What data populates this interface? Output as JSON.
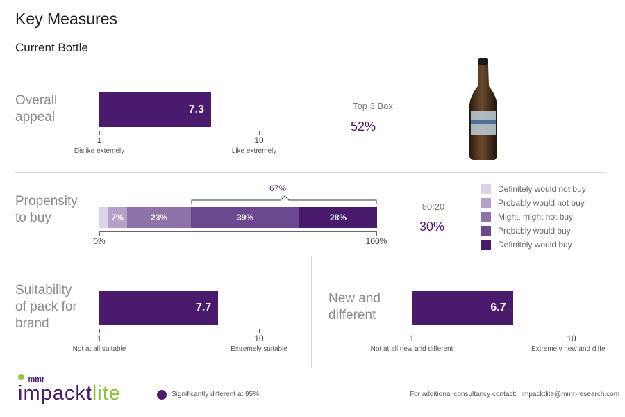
{
  "header": {
    "title": "Key Measures",
    "subtitle": "Current Bottle"
  },
  "colors": {
    "primary": "#4a1a6d",
    "grey_text": "#8a8a8a",
    "brand_green": "#8cc63f"
  },
  "overall_appeal": {
    "label": "Overall\nappeal",
    "value": 7.3,
    "value_label": "7.3",
    "scale_min_label": "1",
    "scale_max_label": "10",
    "min_desc": "Dislike extemely",
    "max_desc": "Like extremely",
    "top_box_title": "Top 3 Box",
    "top_box_value": "52%"
  },
  "propensity": {
    "label": "Propensity\nto buy",
    "segments": [
      {
        "name": "Definitely would not buy",
        "value": 3,
        "label": "",
        "color": "#ddd3e6"
      },
      {
        "name": "Probably would not buy",
        "value": 7,
        "label": "7%",
        "color": "#b4a0c8"
      },
      {
        "name": "Might, might not buy",
        "value": 23,
        "label": "23%",
        "color": "#8e72a8"
      },
      {
        "name": "Probably would buy",
        "value": 39,
        "label": "39%",
        "color": "#6b4890"
      },
      {
        "name": "Definitely would buy",
        "value": 28,
        "label": "28%",
        "color": "#4a1a6d"
      }
    ],
    "bracket_label": "67%",
    "axis_min_label": "0%",
    "axis_max_label": "100%",
    "ratio_title": "80:20",
    "ratio_value": "30%"
  },
  "suitability": {
    "label": "Suitability\nof pack for\nbrand",
    "value": 7.7,
    "value_label": "7.7",
    "scale_min_label": "1",
    "scale_max_label": "10",
    "min_desc": "Not at all suitable",
    "max_desc": "Extremely suitable"
  },
  "new_different": {
    "label": "New and\ndifferent",
    "value": 6.7,
    "value_label": "6.7",
    "scale_min_label": "1",
    "scale_max_label": "10",
    "min_desc": "Not at all new and different",
    "max_desc": "Extremely new and differe"
  },
  "footer": {
    "logo_small": "mmr",
    "logo_main_a": "impackt",
    "logo_main_b": "lite",
    "significance_note": "Significantly different at 95%",
    "contact_label": "For additional consultancy contact:",
    "contact_email": "impacktlite@mmr-research.com"
  }
}
